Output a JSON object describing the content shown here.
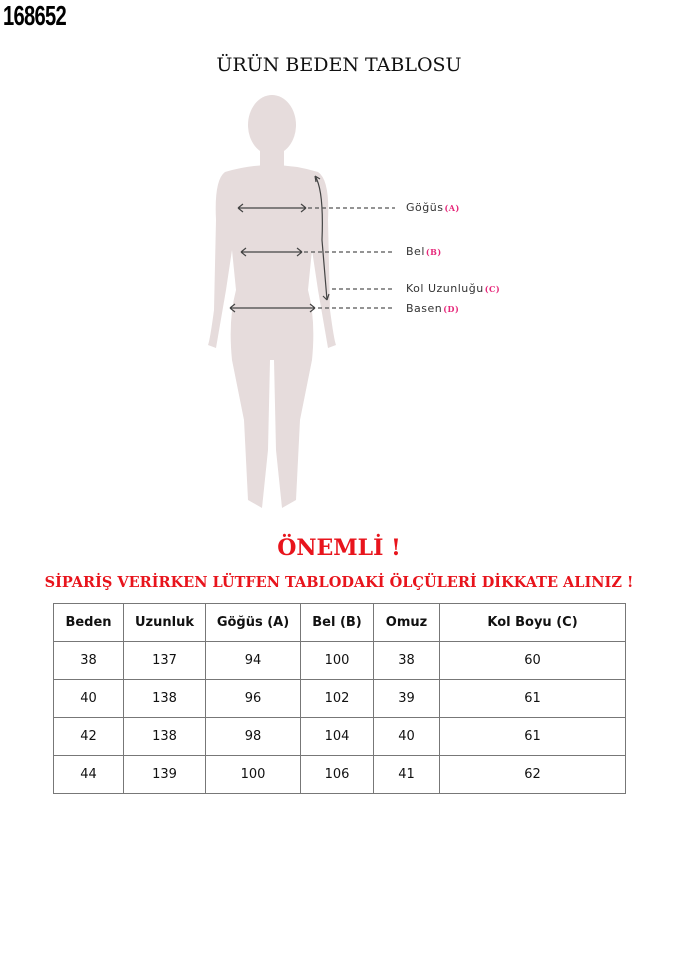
{
  "product_code": "168652",
  "title": "ÜRÜN BEDEN TABLOSU",
  "figure": {
    "labels": [
      {
        "name": "Göğüs",
        "key": "(A)"
      },
      {
        "name": "Bel",
        "key": "(B)"
      },
      {
        "name": "Kol Uzunluğu",
        "key": "(C)"
      },
      {
        "name": "Basen",
        "key": "(D)"
      }
    ],
    "silhouette_color": "#e6dcdc",
    "key_color": "#e6287a"
  },
  "notice": {
    "heading": "ÖNEMLİ !",
    "text": "SİPARİŞ VERİRKEN LÜTFEN TABLODAKİ ÖLÇÜLERİ DİKKATE ALINIZ !",
    "color": "#e8141c"
  },
  "table": {
    "headers": [
      "Beden",
      "Uzunluk",
      "Göğüs (A)",
      "Bel (B)",
      "Omuz",
      "Kol Boyu (C)"
    ],
    "rows": [
      [
        "38",
        "137",
        "94",
        "100",
        "38",
        "60"
      ],
      [
        "40",
        "138",
        "96",
        "102",
        "39",
        "61"
      ],
      [
        "42",
        "138",
        "98",
        "104",
        "40",
        "61"
      ],
      [
        "44",
        "139",
        "100",
        "106",
        "41",
        "62"
      ]
    ]
  }
}
